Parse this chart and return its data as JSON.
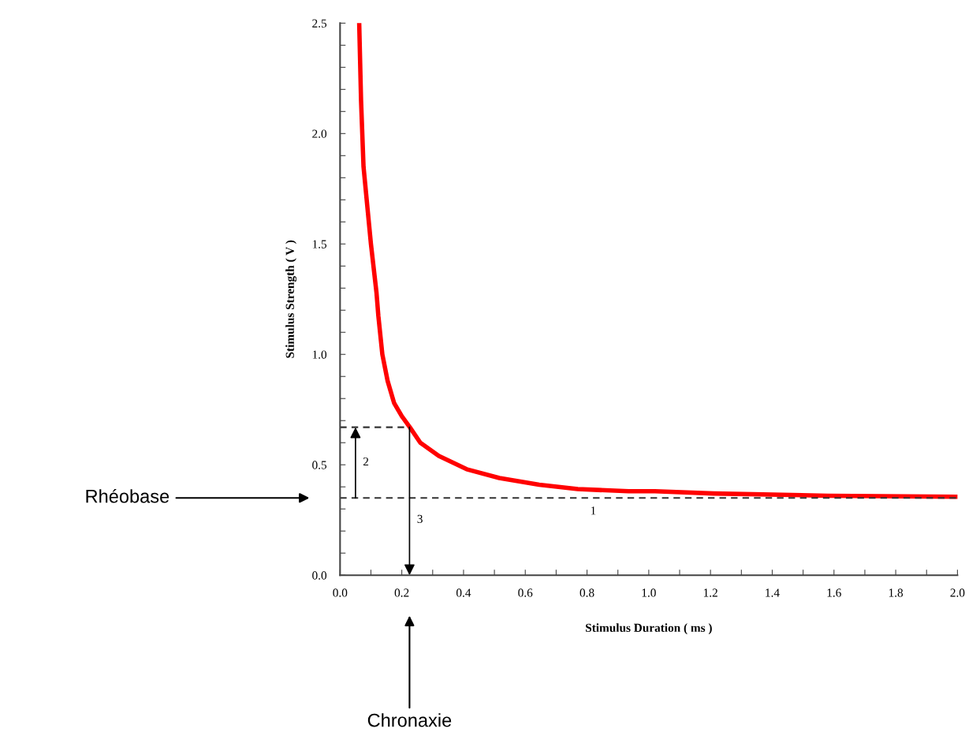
{
  "chart_data": {
    "type": "line",
    "xlabel": "Stimulus Duration ( ms )",
    "ylabel": "Stimulus Strength ( V )",
    "xlim": [
      0,
      2.0
    ],
    "ylim": [
      0,
      2.5
    ],
    "xticks": [
      {
        "value": 0,
        "label": "0.0"
      },
      {
        "value": 0.1,
        "label": null
      },
      {
        "value": 0.2,
        "label": "0.2"
      },
      {
        "value": 0.3,
        "label": null
      },
      {
        "value": 0.4,
        "label": "0.4"
      },
      {
        "value": 0.5,
        "label": null
      },
      {
        "value": 0.6,
        "label": "0.6"
      },
      {
        "value": 0.7,
        "label": null
      },
      {
        "value": 0.8,
        "label": "0.8"
      },
      {
        "value": 0.9,
        "label": null
      },
      {
        "value": 1.0,
        "label": "1.0"
      },
      {
        "value": 1.1,
        "label": null
      },
      {
        "value": 1.2,
        "label": "1.2"
      },
      {
        "value": 1.3,
        "label": null
      },
      {
        "value": 1.4,
        "label": "1.4"
      },
      {
        "value": 1.5,
        "label": null
      },
      {
        "value": 1.6,
        "label": "1.6"
      },
      {
        "value": 1.7,
        "label": null
      },
      {
        "value": 1.8,
        "label": "1.8"
      },
      {
        "value": 1.9,
        "label": null
      },
      {
        "value": 2.0,
        "label": "2.0"
      }
    ],
    "yticks": [
      {
        "value": 0,
        "label": "0.0"
      },
      {
        "value": 0.1,
        "label": null
      },
      {
        "value": 0.2,
        "label": null
      },
      {
        "value": 0.3,
        "label": null
      },
      {
        "value": 0.4,
        "label": null
      },
      {
        "value": 0.5,
        "label": "0.5"
      },
      {
        "value": 0.6,
        "label": null
      },
      {
        "value": 0.7,
        "label": null
      },
      {
        "value": 0.8,
        "label": null
      },
      {
        "value": 0.9,
        "label": null
      },
      {
        "value": 1.0,
        "label": "1.0"
      },
      {
        "value": 1.1,
        "label": null
      },
      {
        "value": 1.2,
        "label": null
      },
      {
        "value": 1.3,
        "label": null
      },
      {
        "value": 1.4,
        "label": null
      },
      {
        "value": 1.5,
        "label": "1.5"
      },
      {
        "value": 1.6,
        "label": null
      },
      {
        "value": 1.7,
        "label": null
      },
      {
        "value": 1.8,
        "label": null
      },
      {
        "value": 1.9,
        "label": null
      },
      {
        "value": 2.0,
        "label": "2.0"
      },
      {
        "value": 2.1,
        "label": null
      },
      {
        "value": 2.2,
        "label": null
      },
      {
        "value": 2.3,
        "label": null
      },
      {
        "value": 2.4,
        "label": null
      },
      {
        "value": 2.5,
        "label": "2.5"
      }
    ],
    "grid": false,
    "legend": false,
    "series": [
      {
        "color": "#ff0000",
        "line_style": "solid",
        "x": [
          0.062,
          0.068,
          0.076,
          0.089,
          0.1,
          0.118,
          0.124,
          0.137,
          0.154,
          0.175,
          0.2,
          0.226,
          0.26,
          0.32,
          0.41,
          0.516,
          0.645,
          0.77,
          0.935,
          1.02,
          1.21,
          1.58,
          2.0
        ],
        "values": [
          2.5,
          2.15,
          1.85,
          1.66,
          1.5,
          1.28,
          1.175,
          1.0,
          0.88,
          0.78,
          0.72,
          0.67,
          0.6,
          0.54,
          0.48,
          0.44,
          0.41,
          0.39,
          0.38,
          0.38,
          0.37,
          0.36,
          0.355
        ]
      },
      {
        "type": "line",
        "color": "#333333",
        "line_style": "dashed",
        "x": [
          0,
          0.225
        ],
        "values": [
          0.67,
          0.67
        ]
      }
    ],
    "ref_lines": [
      {
        "axis": "y",
        "value": 0.35,
        "color": "#333333",
        "line_style": "dashed"
      }
    ],
    "annotations": [
      "1",
      "2",
      "3",
      "Rhéobase",
      "Chronaxie"
    ]
  }
}
